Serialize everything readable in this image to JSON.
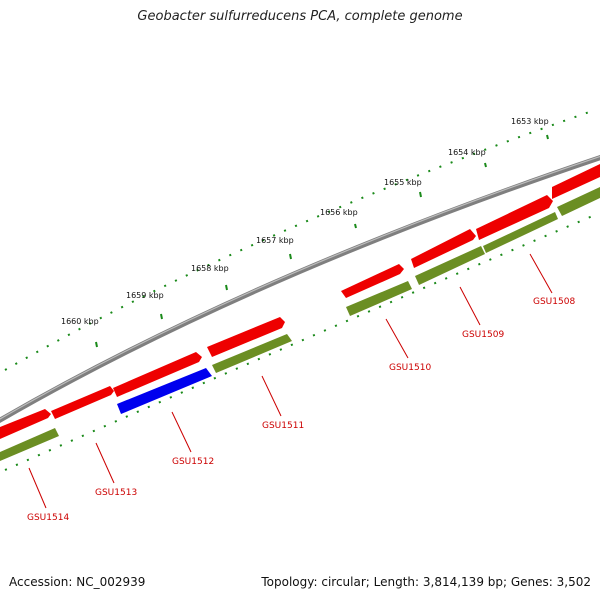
{
  "title": "Geobacter sulfurreducens PCA, complete genome",
  "footer": {
    "accession": "Accession: NC_002939",
    "summary": "Topology: circular; Length: 3,814,139 bp; Genes: 3,502"
  },
  "colors": {
    "backbone": "#808080",
    "forward_gene": "#ee0000",
    "reverse_gene": "#6b8e23",
    "reverse_gene_alt": "#0000ee",
    "tick": "#1a8a1a",
    "label": "#cc0000"
  },
  "kbp_labels": [
    "1653 kbp",
    "1654 kbp",
    "1655 kbp",
    "1656 kbp",
    "1657 kbp",
    "1658 kbp",
    "1659 kbp",
    "1660 kbp"
  ],
  "gene_labels": [
    "GSU1508",
    "GSU1509",
    "GSU1510",
    "GSU1511",
    "GSU1512",
    "GSU1513",
    "GSU1514"
  ]
}
